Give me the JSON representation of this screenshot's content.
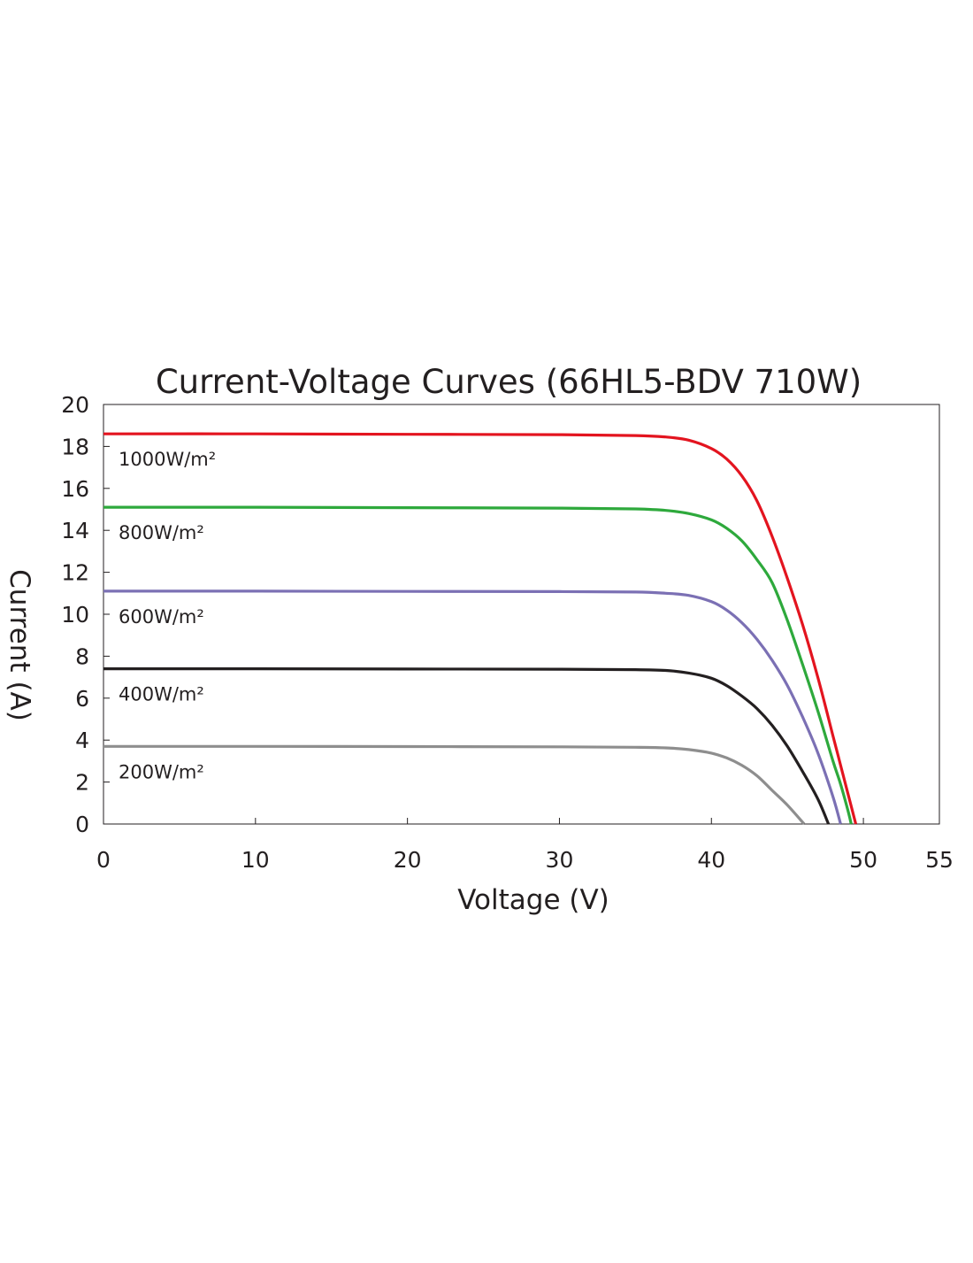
{
  "chart_data": {
    "type": "line",
    "title": "Current-Voltage Curves (66HL5-BDV 710W)",
    "xlabel": "Voltage (V)",
    "ylabel": "Current (A)",
    "xlim": [
      0,
      55
    ],
    "ylim": [
      0,
      20
    ],
    "xticks": [
      "0",
      "10",
      "20",
      "30",
      "40",
      "50",
      "55"
    ],
    "yticks": [
      "0",
      "2",
      "4",
      "6",
      "8",
      "10",
      "12",
      "14",
      "16",
      "18",
      "20"
    ],
    "grid": false,
    "legend": "inline",
    "series": [
      {
        "label": "1000W/m²",
        "color": "#e3141f",
        "x": [
          0,
          10,
          20,
          30,
          35,
          37,
          38.5,
          40,
          41,
          42,
          43,
          44,
          45,
          46,
          47,
          48,
          48.5,
          49,
          49.5
        ],
        "y": [
          18.6,
          18.6,
          18.58,
          18.56,
          18.52,
          18.45,
          18.3,
          17.9,
          17.4,
          16.6,
          15.4,
          13.7,
          11.7,
          9.5,
          7.0,
          4.2,
          2.8,
          1.4,
          0
        ]
      },
      {
        "label": "800W/m²",
        "color": "#2ea93c",
        "x": [
          0,
          10,
          20,
          30,
          35,
          37,
          38.5,
          40,
          41,
          42,
          43,
          44,
          45,
          46,
          47,
          48,
          48.5,
          49,
          49.2
        ],
        "y": [
          15.1,
          15.1,
          15.08,
          15.06,
          15.02,
          14.95,
          14.8,
          14.5,
          14.1,
          13.5,
          12.6,
          11.5,
          9.7,
          7.6,
          5.4,
          3.0,
          1.9,
          0.6,
          0
        ]
      },
      {
        "label": "600W/m²",
        "color": "#7b70b4",
        "x": [
          0,
          10,
          20,
          30,
          35,
          37,
          38.5,
          40,
          41,
          42,
          43,
          44,
          45,
          46,
          47,
          48,
          48.5
        ],
        "y": [
          11.1,
          11.1,
          11.09,
          11.08,
          11.06,
          11.0,
          10.9,
          10.6,
          10.2,
          9.6,
          8.8,
          7.8,
          6.6,
          5.1,
          3.4,
          1.3,
          0
        ]
      },
      {
        "label": "400W/m²",
        "color": "#231f20",
        "x": [
          0,
          10,
          20,
          30,
          35,
          37,
          38.5,
          40,
          41,
          42,
          43,
          44,
          45,
          46,
          47,
          47.7
        ],
        "y": [
          7.4,
          7.4,
          7.39,
          7.38,
          7.36,
          7.32,
          7.2,
          6.95,
          6.6,
          6.1,
          5.5,
          4.7,
          3.7,
          2.5,
          1.2,
          0
        ]
      },
      {
        "label": "200W/m²",
        "color": "#8e8e8e",
        "x": [
          0,
          10,
          20,
          30,
          35,
          37,
          38.5,
          40,
          41,
          42,
          43,
          44,
          45,
          46.1
        ],
        "y": [
          3.7,
          3.7,
          3.69,
          3.68,
          3.66,
          3.63,
          3.55,
          3.38,
          3.15,
          2.8,
          2.3,
          1.6,
          0.9,
          0
        ]
      }
    ]
  }
}
